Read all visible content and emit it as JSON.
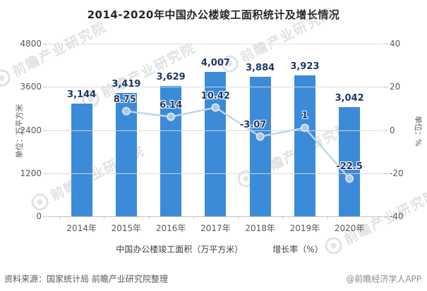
{
  "title": "2014-2020年中国办公楼竣工面积统计及增长情况",
  "chart_data": {
    "type": "combo-bar-line",
    "categories": [
      "2014年",
      "2015年",
      "2016年",
      "2017年",
      "2018年",
      "2019年",
      "2020年"
    ],
    "series": [
      {
        "name": "中国办公楼竣工面积（万平方米）",
        "type": "bar",
        "values": [
          3144,
          3419,
          3629,
          4007,
          3884,
          3923,
          3042
        ],
        "labels": [
          "3,144",
          "3,419",
          "3,629",
          "4,007",
          "3,884",
          "3,923",
          "3,042"
        ],
        "color": "#3c8bd9"
      },
      {
        "name": "增长率（%）",
        "type": "line",
        "values": [
          null,
          8.75,
          6.14,
          10.42,
          -3.07,
          1,
          -22.5
        ],
        "labels": [
          "",
          "8.75",
          "6.14",
          "10.42",
          "-3.07",
          "1",
          "-22.5"
        ],
        "color": "#bfd5eb",
        "marker_color": "#abc9e6"
      }
    ],
    "left_axis": {
      "label": "单位：万平方米",
      "min": 0,
      "max": 4800,
      "ticks": [
        4800,
        3600,
        2400,
        1200,
        0
      ]
    },
    "right_axis": {
      "label": "单位：%",
      "min": -40,
      "max": 40,
      "ticks": [
        40,
        20,
        0,
        -20,
        -40
      ]
    },
    "grid": true,
    "legend_position": "bottom"
  },
  "legend": {
    "bar_label": "中国办公楼竣工面积（万平方米）",
    "line_label": "增长率（%）"
  },
  "footer": {
    "source": "资料来源：国家统计局 前瞻产业研究院整理",
    "credit": "@前瞻经济学人APP"
  },
  "watermark": {
    "text": "前瞻产业研究院",
    "icon": "qianzhan-logo-icon"
  },
  "colors": {
    "bar": "#3c8bd9",
    "line": "#bfd5eb",
    "marker": "#abc9e6",
    "marker_stroke": "#d8e5f3",
    "value_label": "#1f3864",
    "gridline": "#d9d9d9",
    "axis_text": "#595959"
  }
}
